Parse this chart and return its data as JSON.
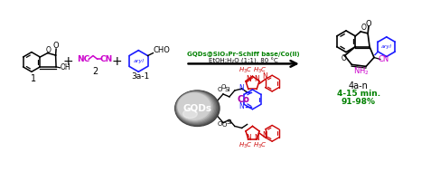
{
  "background_color": "#ffffff",
  "catalyst_text": "GQDs@SiO₃Pr-Schiff base/Co(II)",
  "conditions_text": "EtOH:H₂O (1:1), 80 °C",
  "compound1_label": "1",
  "compound2_label": "2",
  "compound3_label": "3a-1",
  "product_label": "4a-n",
  "yield_line1": "4-15 min.",
  "yield_line2": "91-98%",
  "magenta": "#cc00cc",
  "blue": "#1a1aff",
  "green": "#008000",
  "red": "#cc0000",
  "black": "#000000",
  "purple": "#aa00aa",
  "gqds_gray1": "#555555",
  "gqds_gray2": "#888888",
  "gqds_white": "#cccccc"
}
